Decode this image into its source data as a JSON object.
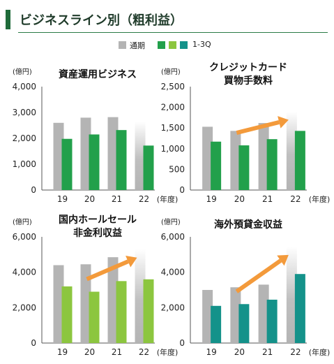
{
  "page": {
    "title": "ビジネスライン別（粗利益）",
    "legend": {
      "full_year": "通期",
      "q3": "1-3Q"
    }
  },
  "colors": {
    "header_bar": "#1f6b3a",
    "full_year": "#b4b4b4",
    "q3_green": "#22a04b",
    "q3_lightgreen": "#8cc63f",
    "q3_teal": "#14928a",
    "arrow": "#f39a3b"
  },
  "chart_data": [
    {
      "type": "bar",
      "title_lines": [
        "資産運用ビジネス"
      ],
      "unit": "(億円)",
      "x_unit": "(年度)",
      "categories": [
        "19",
        "20",
        "21",
        "22"
      ],
      "ylim": [
        0,
        4000
      ],
      "yticks": [
        "0",
        "1,000",
        "2,000",
        "3,000",
        "4,000"
      ],
      "series": [
        {
          "name": "通期",
          "values": [
            2600,
            2800,
            2820,
            2650
          ],
          "last_faded": true
        },
        {
          "name": "1-3Q",
          "values": [
            1980,
            2150,
            2320,
            1720
          ]
        }
      ],
      "q3_color": "#22a04b",
      "arrow": false
    },
    {
      "type": "bar",
      "title_lines": [
        "クレジットカード",
        "買物手数料"
      ],
      "unit": "(億円)",
      "x_unit": "(年度)",
      "categories": [
        "19",
        "20",
        "21",
        "22"
      ],
      "ylim": [
        0,
        2500
      ],
      "yticks": [
        "0",
        "500",
        "1,000",
        "1,500",
        "2,000",
        "2,500"
      ],
      "series": [
        {
          "name": "通期",
          "values": [
            1530,
            1430,
            1620,
            1900
          ],
          "last_faded": true
        },
        {
          "name": "1-3Q",
          "values": [
            1170,
            1080,
            1230,
            1430
          ]
        }
      ],
      "q3_color": "#22a04b",
      "arrow": true
    },
    {
      "type": "bar",
      "title_lines": [
        "国内ホールセール",
        "非金利収益"
      ],
      "unit": "(億円)",
      "x_unit": "(年度)",
      "categories": [
        "19",
        "20",
        "21",
        "22"
      ],
      "ylim": [
        0,
        6000
      ],
      "yticks": [
        "0",
        "2,000",
        "4,000",
        "6,000"
      ],
      "series": [
        {
          "name": "通期",
          "values": [
            4400,
            4450,
            4850,
            5300
          ],
          "last_faded": true
        },
        {
          "name": "1-3Q",
          "values": [
            3200,
            2900,
            3500,
            3600
          ]
        }
      ],
      "q3_color": "#8cc63f",
      "arrow": true
    },
    {
      "type": "bar",
      "title_lines": [
        "海外預貸金収益"
      ],
      "unit": "(億円)",
      "x_unit": "(年度)",
      "categories": [
        "19",
        "20",
        "21",
        "22"
      ],
      "ylim": [
        0,
        6000
      ],
      "yticks": [
        "0",
        "2,000",
        "4,000",
        "6,000"
      ],
      "series": [
        {
          "name": "通期",
          "values": [
            3000,
            3150,
            3300,
            5450
          ],
          "last_faded": true
        },
        {
          "name": "1-3Q",
          "values": [
            2100,
            2200,
            2450,
            3900
          ]
        }
      ],
      "q3_color": "#14928a",
      "arrow": true
    }
  ]
}
